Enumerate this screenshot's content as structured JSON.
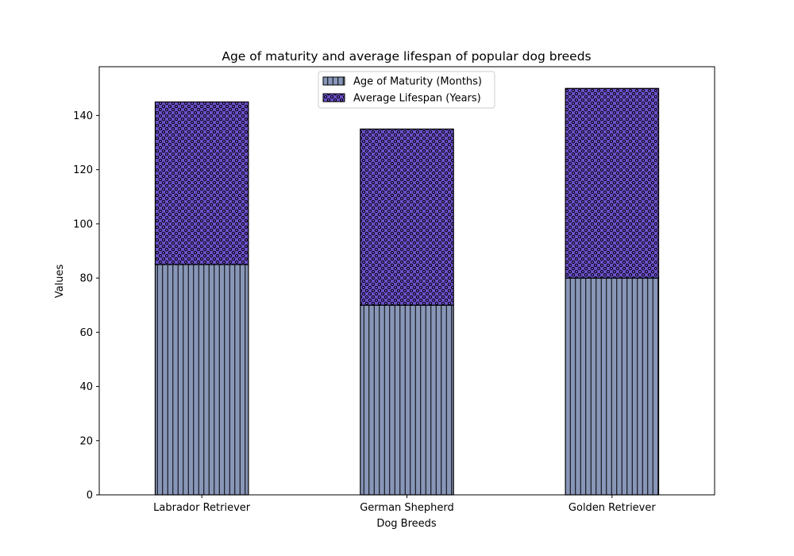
{
  "chart_data": {
    "type": "bar",
    "stacked": true,
    "title": "Age of maturity and average lifespan of popular dog breeds",
    "xlabel": "Dog Breeds",
    "ylabel": "Values",
    "categories": [
      "Labrador Retriever",
      "German Shepherd",
      "Golden Retriever"
    ],
    "series": [
      {
        "name": "Age of Maturity (Months)",
        "values": [
          85,
          70,
          80
        ],
        "color": "#8896b8",
        "hatch": "vertical-lines"
      },
      {
        "name": "Average Lifespan (Years)",
        "values": [
          60,
          65,
          70
        ],
        "color": "#6a4fc8",
        "hatch": "dots"
      }
    ],
    "ylim": [
      0,
      158
    ],
    "yticks": [
      0,
      20,
      40,
      60,
      80,
      100,
      120,
      140
    ],
    "grid": false,
    "legend_position": "top-center"
  }
}
